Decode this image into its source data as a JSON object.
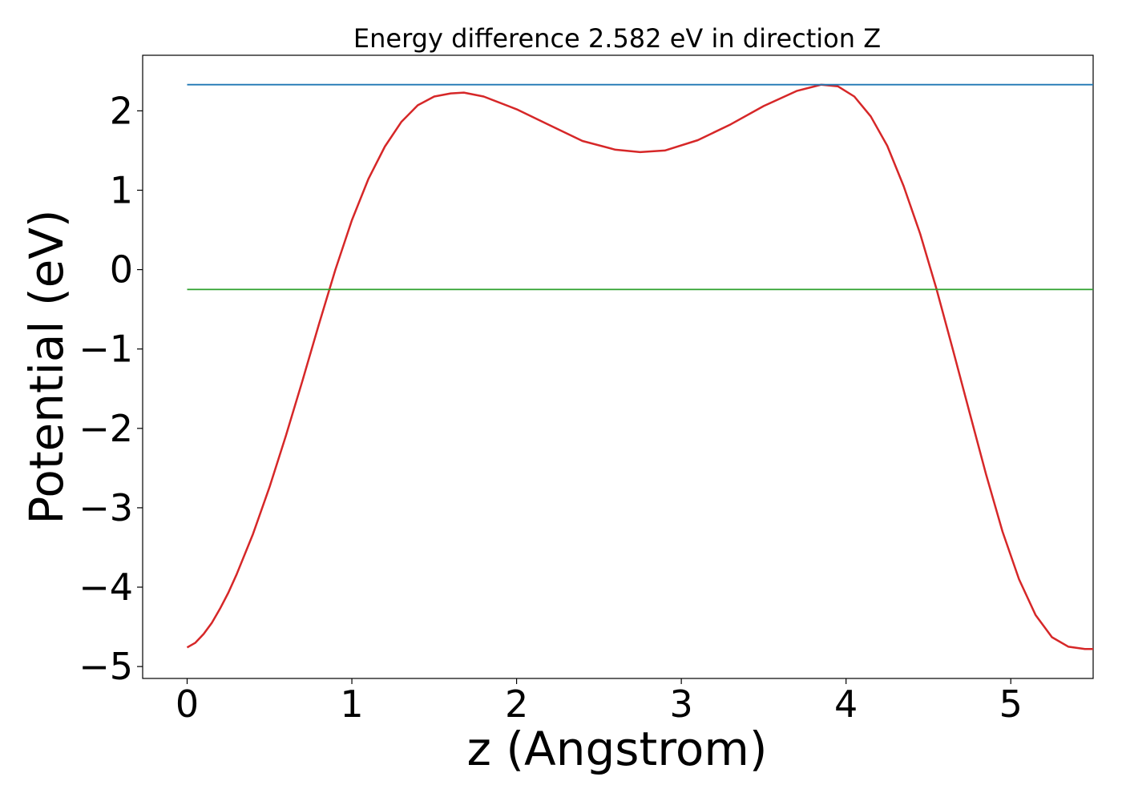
{
  "chart_data": {
    "type": "line",
    "title": "Energy difference 2.582 eV in direction Z",
    "xlabel": "z (Angstrom)",
    "ylabel": "Potential (eV)",
    "xlim": [
      -0.27,
      5.5
    ],
    "ylim": [
      -5.15,
      2.7
    ],
    "xticks": [
      0,
      1,
      2,
      3,
      4,
      5
    ],
    "xtick_labels": [
      "0",
      "1",
      "2",
      "3",
      "4",
      "5"
    ],
    "yticks": [
      2,
      1,
      0,
      -1,
      -2,
      -3,
      -4,
      -5
    ],
    "ytick_labels": [
      "2",
      "1",
      "0",
      "−1",
      "−2",
      "−3",
      "−4",
      "−5"
    ],
    "grid": false,
    "series": [
      {
        "color": "#d62728",
        "x": [
          0.0,
          0.05,
          0.1,
          0.15,
          0.2,
          0.25,
          0.3,
          0.4,
          0.5,
          0.6,
          0.7,
          0.8,
          0.9,
          1.0,
          1.1,
          1.2,
          1.3,
          1.4,
          1.5,
          1.6,
          1.68,
          1.8,
          2.0,
          2.2,
          2.4,
          2.6,
          2.75,
          2.9,
          3.1,
          3.3,
          3.5,
          3.7,
          3.85,
          3.95,
          4.05,
          4.15,
          4.25,
          4.35,
          4.45,
          4.55,
          4.65,
          4.75,
          4.85,
          4.95,
          5.05,
          5.15,
          5.25,
          5.35,
          5.45,
          5.5
        ],
        "y": [
          -4.76,
          -4.7,
          -4.59,
          -4.45,
          -4.27,
          -4.07,
          -3.84,
          -3.33,
          -2.74,
          -2.09,
          -1.4,
          -0.69,
          0.0,
          0.62,
          1.14,
          1.55,
          1.86,
          2.07,
          2.18,
          2.22,
          2.23,
          2.18,
          2.02,
          1.82,
          1.62,
          1.51,
          1.48,
          1.5,
          1.63,
          1.83,
          2.06,
          2.25,
          2.33,
          2.31,
          2.18,
          1.93,
          1.56,
          1.05,
          0.45,
          -0.25,
          -1.02,
          -1.8,
          -2.58,
          -3.3,
          -3.9,
          -4.35,
          -4.63,
          -4.75,
          -4.78,
          -4.78
        ]
      },
      {
        "color": "#1f77b4",
        "x": [
          0.0,
          5.5
        ],
        "y": [
          2.33,
          2.33
        ]
      },
      {
        "color": "#2ca02c",
        "x": [
          0.0,
          5.5
        ],
        "y": [
          -0.25,
          -0.25
        ]
      }
    ]
  }
}
